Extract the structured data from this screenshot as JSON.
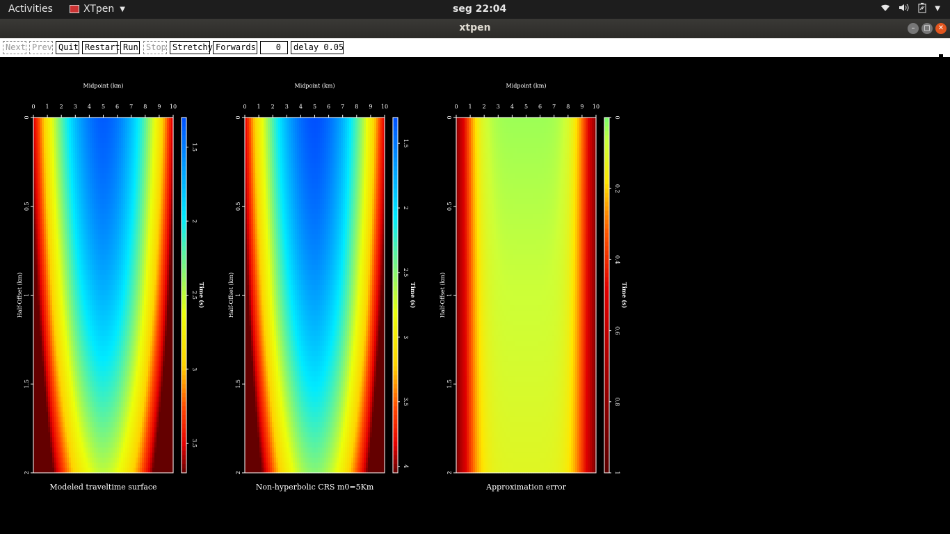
{
  "topbar": {
    "activities": "Activities",
    "app_name": "XTpen",
    "clock": "seg 22:04",
    "tray_icons": [
      "wifi-icon",
      "volume-icon",
      "battery-icon",
      "system-menu-caret-icon"
    ]
  },
  "window": {
    "title": "xtpen"
  },
  "toolbar": {
    "next": "Next",
    "prev": "Prev",
    "quit": "Quit",
    "restart": "Restart",
    "run": "Run",
    "stop": "Stop",
    "stretchy": "Stretchy",
    "forwards": "Forwards",
    "frame": "0",
    "delay": "delay 0.05"
  },
  "chart_data": [
    {
      "type": "heatmap",
      "title": "Modeled traveltime surface",
      "xlabel": "Midpoint (km)",
      "ylabel": "Half-Offset (km)",
      "x_ticks": [
        "0",
        "1",
        "2",
        "3",
        "4",
        "5",
        "6",
        "7",
        "8",
        "9",
        "10"
      ],
      "y_ticks": [
        "0",
        "0.5",
        "1",
        "1.5",
        "2"
      ],
      "xlim": [
        0,
        10
      ],
      "ylim": [
        0,
        2
      ],
      "colorbar_label": "Time (s)",
      "colorbar_ticks": [
        "1.5",
        "2",
        "2.5",
        "3",
        "3.5"
      ],
      "colorbar_range": [
        1.3,
        3.7
      ],
      "colormap": "jet-reversed"
    },
    {
      "type": "heatmap",
      "title": "Non-hyperbolic CRS m0=5Km",
      "xlabel": "Midpoint (km)",
      "ylabel": "Half-Offset (km)",
      "x_ticks": [
        "0",
        "1",
        "2",
        "3",
        "4",
        "5",
        "6",
        "7",
        "8",
        "9",
        "10"
      ],
      "y_ticks": [
        "0",
        "0.5",
        "1",
        "1.5",
        "2"
      ],
      "xlim": [
        0,
        10
      ],
      "ylim": [
        0,
        2
      ],
      "colorbar_label": "Time (s)",
      "colorbar_ticks": [
        "1.5",
        "2",
        "2.5",
        "3",
        "3.5",
        "4"
      ],
      "colorbar_range": [
        1.3,
        4.05
      ],
      "colormap": "jet-reversed"
    },
    {
      "type": "heatmap",
      "title": "Approximation error",
      "xlabel": "Midpoint (km)",
      "ylabel": "Half-Offset (km)",
      "x_ticks": [
        "0",
        "1",
        "2",
        "3",
        "4",
        "5",
        "6",
        "7",
        "8",
        "9",
        "10"
      ],
      "y_ticks": [
        "0",
        "0.5",
        "1",
        "1.5",
        "2"
      ],
      "xlim": [
        0,
        10
      ],
      "ylim": [
        0,
        2
      ],
      "colorbar_label": "Time (s)",
      "colorbar_ticks": [
        "0",
        "0.2",
        "0.4",
        "0.6",
        "0.8",
        "1"
      ],
      "colorbar_range": [
        0,
        1
      ],
      "colormap": "green-yellow-red"
    }
  ]
}
